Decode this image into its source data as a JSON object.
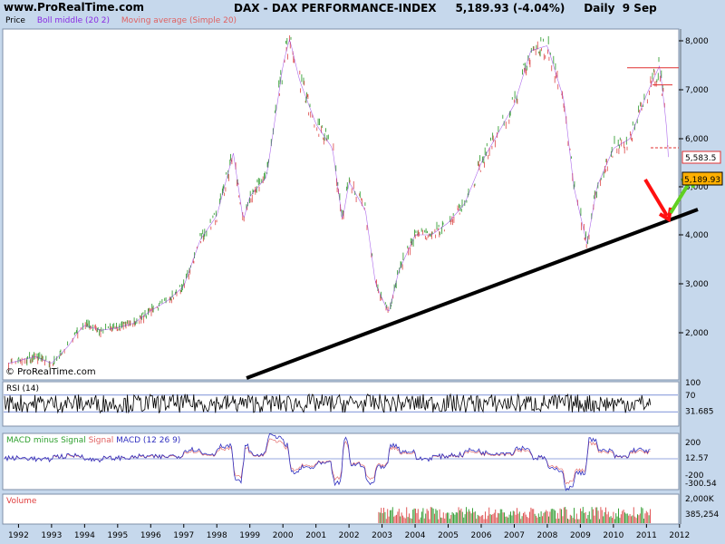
{
  "header": {
    "site": "www.ProRealTime.com",
    "title": "DAX - DAX PERFORMANCE-INDEX     5,189.93 (-4.04%)     Daily  9 Sep"
  },
  "legend": {
    "price": "Price",
    "boll": "Boll middle (20 2)",
    "ma": "Moving average (Simple 20)",
    "price_color": "#000000",
    "boll_color": "#8a2be2",
    "ma_color": "#e06060"
  },
  "watermark": "© ProRealTime.com",
  "chart_data": [
    {
      "type": "line",
      "panel": "price",
      "x": [
        1991.7,
        1992.5,
        1993.0,
        1993.5,
        1994.0,
        1994.5,
        1995.0,
        1995.5,
        1996.0,
        1996.5,
        1997.0,
        1997.5,
        1998.0,
        1998.5,
        1998.8,
        1999.0,
        1999.5,
        2000.0,
        2000.2,
        2000.5,
        2001.0,
        2001.5,
        2001.8,
        2002.0,
        2002.5,
        2002.8,
        2003.2,
        2003.5,
        2004.0,
        2004.5,
        2005.0,
        2005.5,
        2006.0,
        2006.5,
        2007.0,
        2007.5,
        2008.0,
        2008.5,
        2008.8,
        2009.2,
        2009.5,
        2010.0,
        2010.5,
        2011.0,
        2011.4,
        2011.6,
        2011.7
      ],
      "y": [
        1550,
        1650,
        1550,
        1800,
        2150,
        2050,
        2100,
        2200,
        2450,
        2650,
        2950,
        3900,
        4400,
        5700,
        4300,
        4800,
        5200,
        7500,
        8050,
        7200,
        6300,
        5800,
        4300,
        5100,
        4500,
        3000,
        2400,
        3250,
        4000,
        4000,
        4250,
        4650,
        5500,
        6100,
        6700,
        7800,
        7900,
        6800,
        5000,
        3800,
        5000,
        5800,
        6000,
        6900,
        7500,
        6300,
        5190
      ],
      "title": "DAX - DAX PERFORMANCE-INDEX",
      "ylim": [
        1400,
        8500
      ],
      "y_ticks": [
        "8,000",
        "7,000",
        "6,000",
        "5,000",
        "4,000",
        "3,000",
        "2,000"
      ],
      "scale": "log",
      "price_labels": [
        "5,583.5",
        "5,189.93"
      ],
      "annotations": [
        "support trend line",
        "red arrow down",
        "green arrow up",
        "horizontal levels 7,450 and 7,100"
      ]
    },
    {
      "type": "line",
      "panel": "rsi",
      "name": "RSI (14)",
      "ylim": [
        0,
        100
      ],
      "y_ticks": [
        "100",
        "70",
        "31.685"
      ],
      "levels": [
        70,
        30
      ],
      "last": 31.685
    },
    {
      "type": "line",
      "panel": "macd",
      "series": [
        {
          "name": "MACD minus Signal",
          "color": "#2ea02e"
        },
        {
          "name": "Signal",
          "color": "#e06060"
        },
        {
          "name": "MACD (12 26 9)",
          "color": "#3030c0"
        }
      ],
      "y_ticks": [
        "200",
        "12.57",
        "-200",
        "-300.54"
      ]
    },
    {
      "type": "bar",
      "panel": "volume",
      "name": "Volume",
      "y_ticks": [
        "2,000K",
        "385,254"
      ]
    }
  ],
  "x_axis": {
    "labels": [
      "1992",
      "1993",
      "1994",
      "1995",
      "1996",
      "1997",
      "1998",
      "1999",
      "2000",
      "2001",
      "2002",
      "2003",
      "2004",
      "2005",
      "2006",
      "2007",
      "2008",
      "2009",
      "2010",
      "2011",
      "2012"
    ]
  }
}
